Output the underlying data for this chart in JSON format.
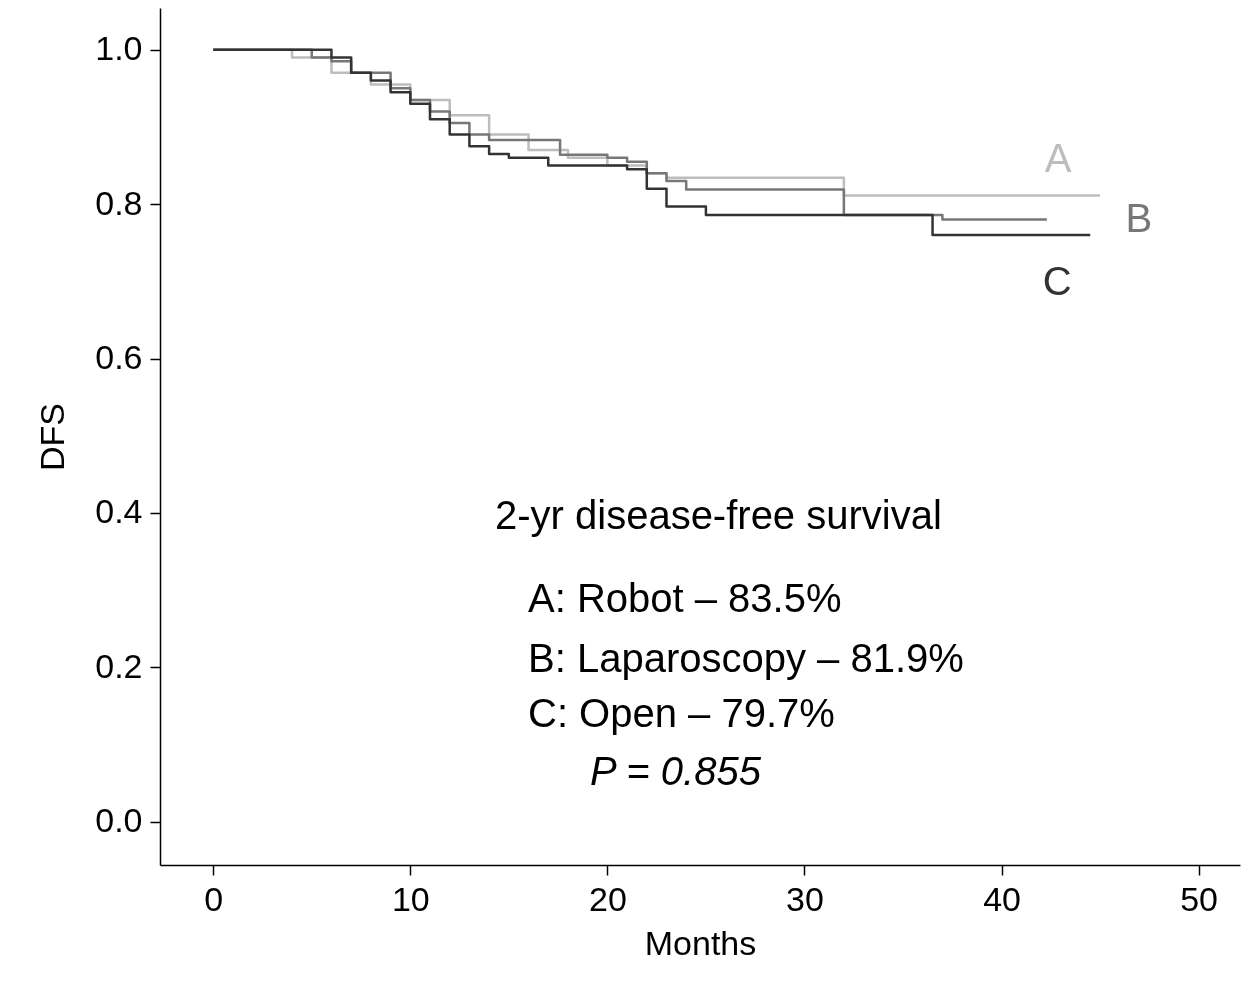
{
  "chart_data": {
    "type": "step",
    "xlabel": "Months",
    "ylabel": "DFS",
    "xlim": [
      -2.7,
      52.1
    ],
    "ylim": [
      -0.056,
      1.054
    ],
    "xticks": [
      0,
      10,
      20,
      30,
      40,
      50
    ],
    "yticks": [
      {
        "value": 0,
        "label": "0.0"
      },
      {
        "value": 0.2,
        "label": "0.2"
      },
      {
        "value": 0.4,
        "label": "0.4"
      },
      {
        "value": 0.6,
        "label": "0.6"
      },
      {
        "value": 0.8,
        "label": "0.8"
      },
      {
        "value": 1,
        "label": "1.0"
      }
    ],
    "grid": false,
    "series": [
      {
        "name": "A",
        "color": "#bdbdbd",
        "x": [
          0,
          3,
          4,
          6,
          8,
          10,
          12,
          14,
          16,
          18,
          20,
          22,
          23,
          32,
          45
        ],
        "values": [
          1,
          1,
          0.99,
          0.97,
          0.955,
          0.935,
          0.915,
          0.89,
          0.87,
          0.86,
          0.85,
          0.84,
          0.834,
          0.811,
          0.811
        ]
      },
      {
        "name": "B",
        "color": "#777777",
        "x": [
          0,
          5,
          6,
          7,
          9,
          10,
          11,
          12,
          13,
          14,
          17.6,
          20,
          21,
          22,
          23,
          24,
          32,
          37,
          42.3
        ],
        "values": [
          1,
          0.99,
          0.985,
          0.97,
          0.95,
          0.935,
          0.92,
          0.905,
          0.89,
          0.883,
          0.864,
          0.86,
          0.855,
          0.84,
          0.83,
          0.819,
          0.786,
          0.78,
          0.78
        ]
      },
      {
        "name": "C",
        "color": "#333333",
        "x": [
          0,
          5,
          6,
          7,
          8,
          9,
          10,
          11,
          12,
          13,
          14,
          15,
          17,
          21,
          22,
          23,
          25,
          36.5,
          44.5
        ],
        "values": [
          1,
          1,
          0.99,
          0.97,
          0.96,
          0.945,
          0.93,
          0.91,
          0.89,
          0.875,
          0.865,
          0.86,
          0.85,
          0.845,
          0.82,
          0.797,
          0.786,
          0.76,
          0.76
        ]
      }
    ],
    "annotations": [
      "2-yr disease-free survival",
      "A: Robot – 83.5%",
      "B: Laparoscopy – 81.9%",
      "C: Open – 79.7%",
      "P = 0.855"
    ]
  }
}
